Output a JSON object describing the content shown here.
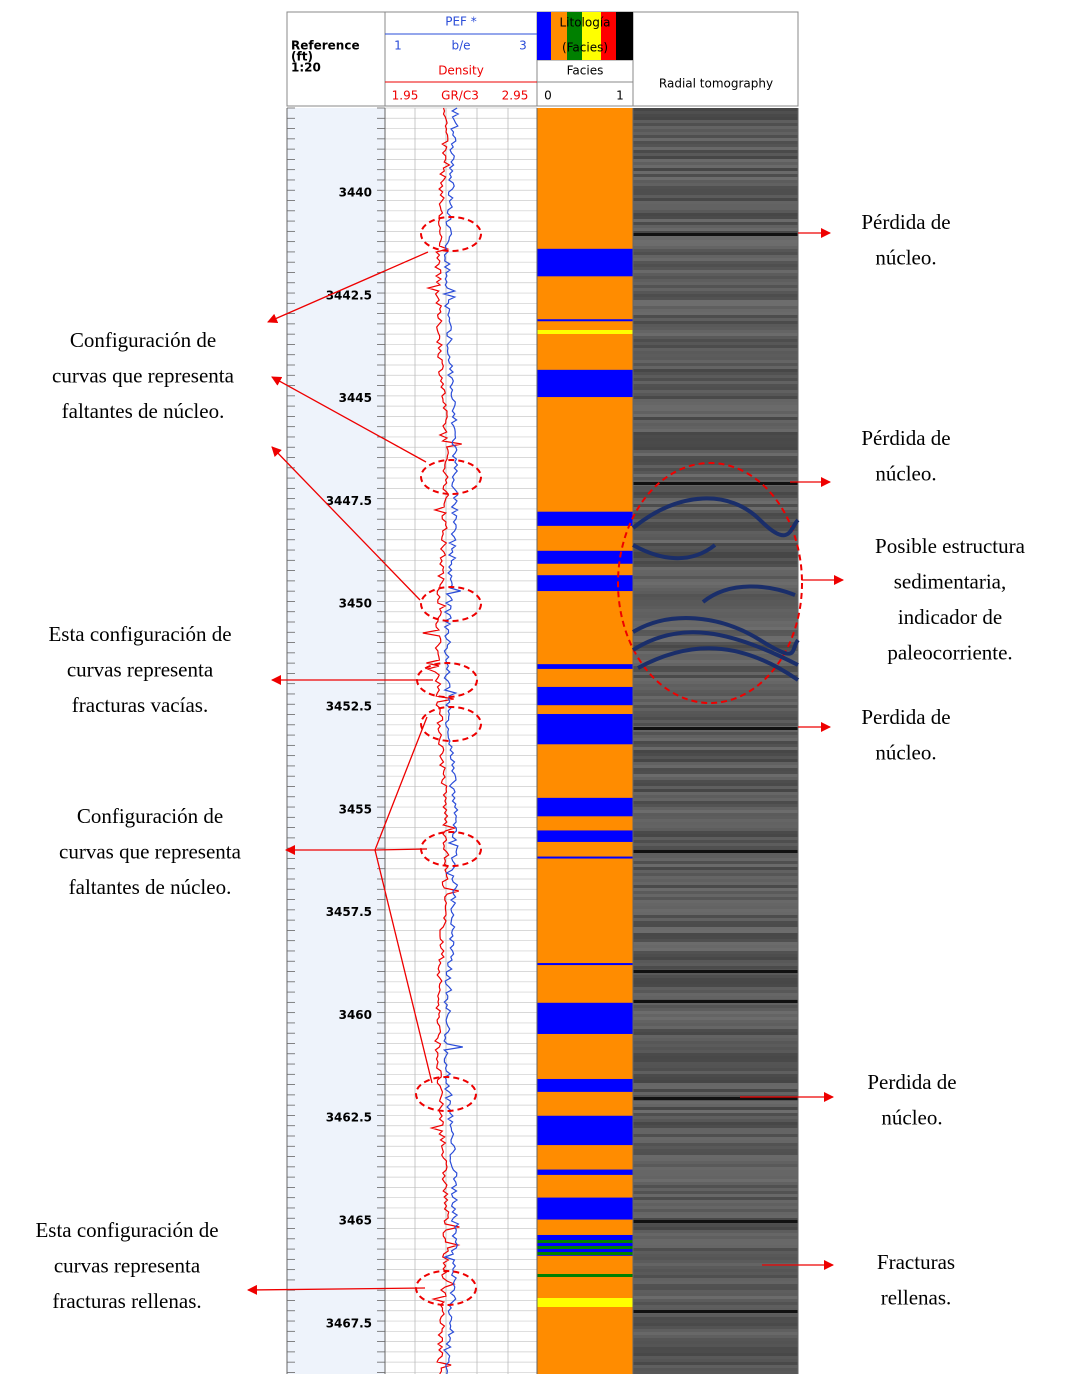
{
  "header": {
    "reference": [
      "Reference",
      "(ft)",
      "1:20"
    ],
    "pef": {
      "name": "PEF *",
      "min": "1",
      "unit": "b/e",
      "max": "3"
    },
    "density": {
      "name": "Density",
      "min": "1.95",
      "unit": "GR/C3",
      "max": "2.95"
    },
    "lithology": {
      "name": "Litología",
      "sub": "(Facies)",
      "facies": "Facies",
      "min": "0",
      "max": "1"
    },
    "tomography": "Radial tomography"
  },
  "depth_labels": [
    "3440",
    "3442.5",
    "3445",
    "3447.5",
    "3450",
    "3452.5",
    "3455",
    "3457.5",
    "3460",
    "3462.5",
    "3465",
    "3467.5"
  ],
  "annotations": {
    "right": [
      {
        "lines": [
          "Pérdida de",
          "núcleo."
        ]
      },
      {
        "lines": [
          "Pérdida de",
          "núcleo."
        ]
      },
      {
        "lines": [
          "Posible estructura",
          "sedimentaria,",
          "indicador de",
          "paleocorriente."
        ]
      },
      {
        "lines": [
          "Perdida de",
          "núcleo."
        ]
      },
      {
        "lines": [
          "Perdida de",
          "núcleo."
        ]
      },
      {
        "lines": [
          "Fracturas",
          "rellenas."
        ]
      }
    ],
    "left": [
      {
        "lines": [
          "Configuración de",
          "curvas que representa",
          "faltantes de núcleo."
        ]
      },
      {
        "lines": [
          "Esta configuración de",
          "curvas representa",
          "fracturas vacías."
        ]
      },
      {
        "lines": [
          "Configuración de",
          "curvas que representa",
          "faltantes de núcleo."
        ]
      },
      {
        "lines": [
          "Esta configuración de",
          "curvas representa",
          "fracturas rellenas."
        ]
      }
    ]
  }
}
